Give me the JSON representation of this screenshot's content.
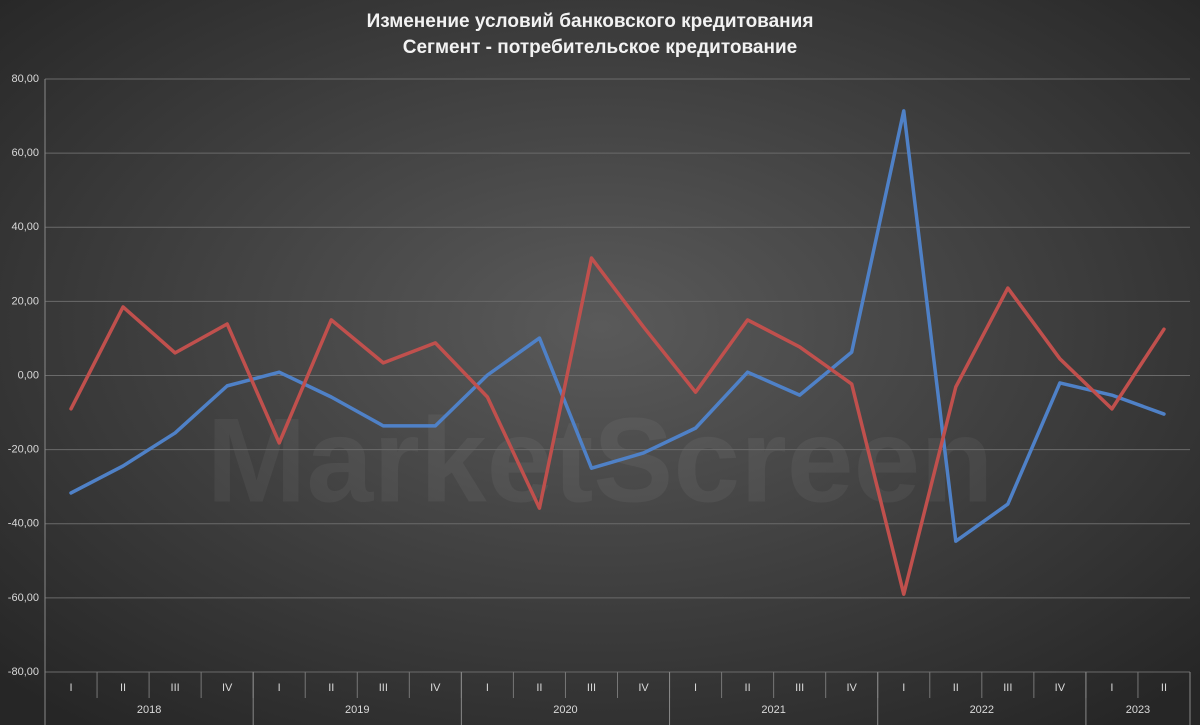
{
  "chart_data": {
    "type": "line",
    "title": "Изменение условий банковского кредитования",
    "subtitle": "Сегмент - потребительское кредитование",
    "watermark": "MarketScreen",
    "categories": [
      "I",
      "II",
      "III",
      "IV",
      "I",
      "II",
      "III",
      "IV",
      "I",
      "II",
      "III",
      "IV",
      "I",
      "II",
      "III",
      "IV",
      "I",
      "II",
      "III",
      "IV",
      "I",
      "II"
    ],
    "x_groups": [
      {
        "label": "2018",
        "count": 4
      },
      {
        "label": "2019",
        "count": 4
      },
      {
        "label": "2020",
        "count": 4
      },
      {
        "label": "2021",
        "count": 4
      },
      {
        "label": "2022",
        "count": 4
      },
      {
        "label": "2023",
        "count": 2
      }
    ],
    "series": [
      {
        "color": "#4f81c7",
        "values": [
          -31.7,
          -24.4,
          -15.5,
          -2.8,
          0.9,
          -5.8,
          -13.6,
          -13.6,
          0.1,
          10.1,
          -25.0,
          -20.9,
          -14.2,
          0.9,
          -5.3,
          6.3,
          71.4,
          -44.7,
          -34.7,
          -2.0,
          -5.3,
          -10.4
        ]
      },
      {
        "color": "#c0504d",
        "values": [
          -9.0,
          18.5,
          6.1,
          13.9,
          -18.2,
          15.0,
          3.4,
          8.8,
          -5.8,
          -35.8,
          31.7,
          13.1,
          -4.5,
          15.0,
          7.7,
          -2.3,
          -59.0,
          -3.1,
          23.6,
          4.5,
          -9.0,
          12.5
        ]
      }
    ],
    "ylim": [
      -80,
      80
    ],
    "yticks": [
      {
        "value": -80,
        "label": "-80,00"
      },
      {
        "value": -60,
        "label": "-60,00"
      },
      {
        "value": -40,
        "label": "-40,00"
      },
      {
        "value": -20,
        "label": "-20,00"
      },
      {
        "value": 0,
        "label": "0,00"
      },
      {
        "value": 20,
        "label": "20,00"
      },
      {
        "value": 40,
        "label": "40,00"
      },
      {
        "value": 60,
        "label": "60,00"
      },
      {
        "value": 80,
        "label": "80,00"
      }
    ],
    "grid": true
  }
}
